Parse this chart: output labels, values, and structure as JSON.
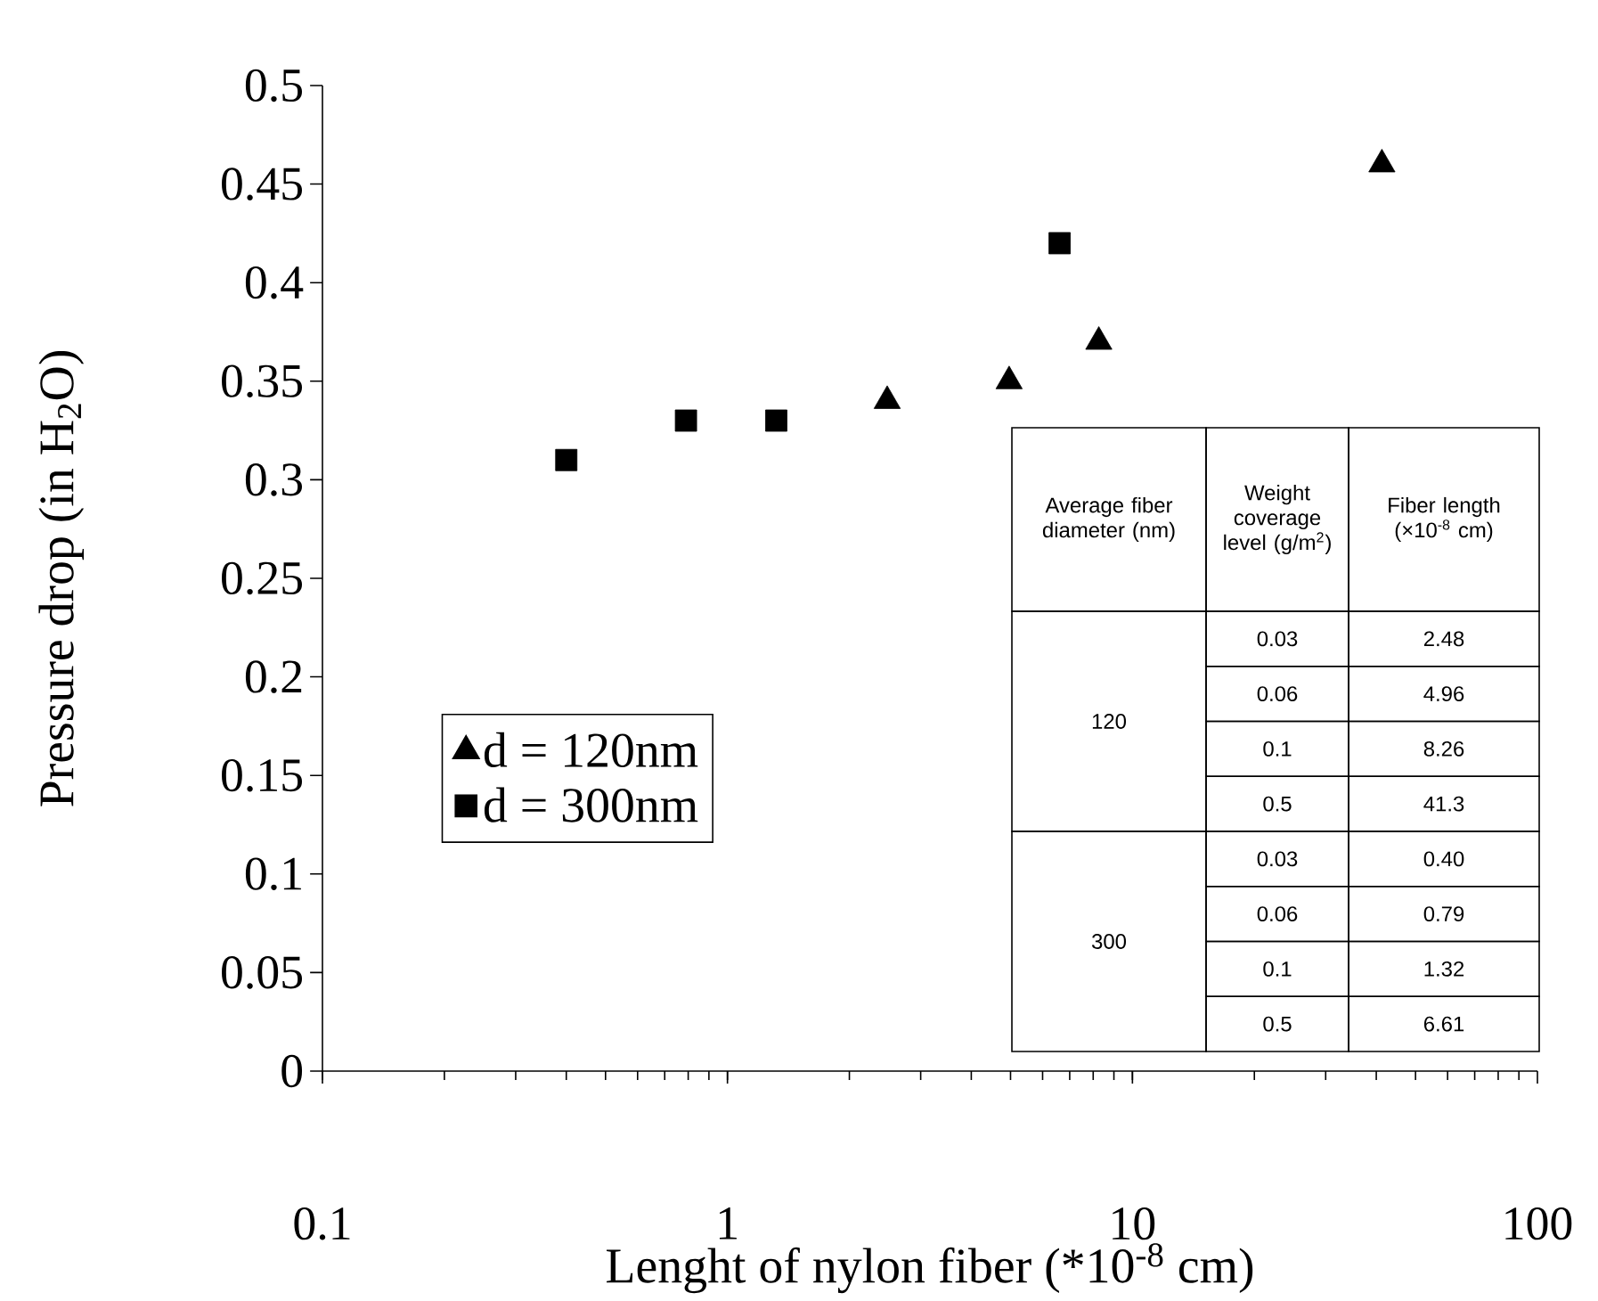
{
  "chart_data": {
    "type": "scatter",
    "xlabel": "Lenght of nylon fiber (*10$^{-8}$ cm)",
    "ylabel": "Pressure drop (in H$_{2}$O)",
    "log": "x",
    "xlim": [
      0.1,
      100
    ],
    "xticks": [
      0.1,
      1,
      10,
      100
    ],
    "ylim": [
      0,
      0.5
    ],
    "yticks": [
      0,
      0.05,
      0.1,
      0.15,
      0.2,
      0.25,
      0.3,
      0.35,
      0.4,
      0.45,
      0.5
    ],
    "legend": "left",
    "grid": false,
    "series": [
      {
        "name": "d = 120nm",
        "color": "#000000",
        "marker": "triangle",
        "x": [
          2.48,
          4.96,
          8.26,
          41.3
        ],
        "values": [
          0.34,
          0.35,
          0.37,
          0.46
        ]
      },
      {
        "name": "d = 300nm",
        "color": "#000000",
        "marker": "square",
        "x": [
          0.4,
          0.79,
          1.32,
          6.61
        ],
        "values": [
          0.31,
          0.33,
          0.33,
          0.42
        ]
      }
    ],
    "annotations": [
      "Average fiber diameter (nm)",
      "Weight coverage level (g/m$^{2}$)",
      "Fiber length (×10$^{-8}$ cm)",
      "120",
      "300",
      "0.03",
      "2.48",
      "0.06",
      "4.96",
      "0.1",
      "8.26",
      "0.5",
      "41.3",
      "0.03",
      "0.40",
      "0.06",
      "0.79",
      "0.1",
      "1.32",
      "0.5",
      "6.61"
    ]
  }
}
